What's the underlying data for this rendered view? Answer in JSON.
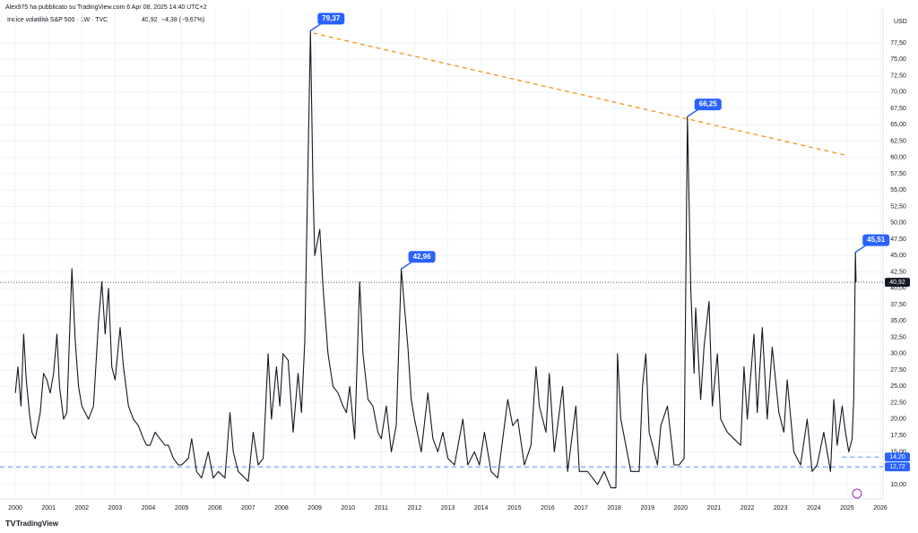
{
  "header": {
    "publisher": "Alex975 ha pubblicato su TradingView.com 6 Apr 08, 2025 14:40 UTC+2",
    "symbol": "Indice volatilità S&P 500 · 1W · TVC",
    "last": "40,92",
    "change": "−4,38 (−9,67%)",
    "currency": "USD",
    "brand": "TradingView"
  },
  "chart_data": {
    "type": "line",
    "series": [
      {
        "color": "#131722",
        "x": [
          2000.0,
          2000.08,
          2000.17,
          2000.25,
          2000.33,
          2000.42,
          2000.5,
          2000.6,
          2000.75,
          2000.85,
          2000.95,
          2001.05,
          2001.15,
          2001.25,
          2001.33,
          2001.45,
          2001.55,
          2001.7,
          2001.8,
          2001.9,
          2002.0,
          2002.1,
          2002.2,
          2002.35,
          2002.5,
          2002.6,
          2002.7,
          2002.8,
          2002.9,
          2003.0,
          2003.15,
          2003.25,
          2003.4,
          2003.55,
          2003.7,
          2003.85,
          2003.95,
          2004.05,
          2004.2,
          2004.35,
          2004.5,
          2004.6,
          2004.75,
          2004.9,
          2005.0,
          2005.2,
          2005.3,
          2005.45,
          2005.6,
          2005.8,
          2005.95,
          2006.1,
          2006.3,
          2006.45,
          2006.55,
          2006.7,
          2006.9,
          2007.0,
          2007.15,
          2007.3,
          2007.45,
          2007.6,
          2007.7,
          2007.85,
          2007.95,
          2008.05,
          2008.2,
          2008.35,
          2008.5,
          2008.6,
          2008.7,
          2008.8,
          2008.87,
          2008.95,
          2009.0,
          2009.15,
          2009.25,
          2009.4,
          2009.55,
          2009.7,
          2009.85,
          2009.95,
          2010.05,
          2010.2,
          2010.35,
          2010.45,
          2010.6,
          2010.75,
          2010.9,
          2011.0,
          2011.15,
          2011.3,
          2011.45,
          2011.6,
          2011.7,
          2011.8,
          2011.9,
          2012.0,
          2012.2,
          2012.4,
          2012.55,
          2012.7,
          2012.85,
          2013.0,
          2013.2,
          2013.45,
          2013.6,
          2013.8,
          2013.95,
          2014.1,
          2014.3,
          2014.5,
          2014.8,
          2014.95,
          2015.1,
          2015.3,
          2015.5,
          2015.65,
          2015.75,
          2015.95,
          2016.05,
          2016.2,
          2016.45,
          2016.6,
          2016.85,
          2016.95,
          2017.2,
          2017.5,
          2017.7,
          2017.9,
          2018.05,
          2018.1,
          2018.2,
          2018.5,
          2018.75,
          2018.85,
          2018.95,
          2019.05,
          2019.3,
          2019.4,
          2019.6,
          2019.8,
          2019.95,
          2020.1,
          2020.2,
          2020.3,
          2020.4,
          2020.45,
          2020.6,
          2020.7,
          2020.85,
          2020.95,
          2021.1,
          2021.2,
          2021.4,
          2021.6,
          2021.8,
          2021.9,
          2022.0,
          2022.2,
          2022.3,
          2022.45,
          2022.6,
          2022.75,
          2022.95,
          2023.1,
          2023.2,
          2023.4,
          2023.6,
          2023.8,
          2023.95,
          2024.1,
          2024.3,
          2024.5,
          2024.6,
          2024.7,
          2024.85,
          2024.95,
          2025.05,
          2025.15,
          2025.2,
          2025.25,
          2025.27
        ],
        "values": [
          24,
          28,
          22,
          33,
          26,
          21,
          18,
          17,
          21,
          27,
          26,
          24,
          27,
          33,
          25,
          20,
          21,
          43,
          32,
          25,
          22,
          21,
          20,
          22,
          35,
          41,
          33,
          40,
          28,
          26,
          34,
          28,
          22,
          20,
          19,
          17,
          16,
          16,
          18,
          17,
          16,
          16,
          14,
          13,
          13,
          14,
          17,
          12,
          11,
          15,
          11,
          12,
          11,
          21,
          15,
          12,
          11,
          10.5,
          18,
          13,
          14,
          30,
          20,
          28,
          22,
          30,
          29,
          18,
          27,
          21,
          32,
          60,
          79.37,
          55,
          45,
          49,
          40,
          30,
          25,
          24,
          22,
          21,
          25,
          17,
          41,
          30,
          23,
          22,
          18,
          17,
          22,
          15,
          19,
          42.96,
          37,
          31,
          23,
          20,
          15,
          24,
          17,
          15,
          18,
          14,
          13,
          20,
          13,
          15,
          13,
          18,
          12,
          11,
          23,
          19,
          20,
          13,
          16,
          28,
          22,
          18,
          27,
          15,
          25,
          12,
          22,
          12,
          12,
          10,
          12,
          9.5,
          9.5,
          30,
          20,
          12,
          12,
          25,
          30,
          18,
          13,
          19,
          22,
          13,
          13,
          14,
          66.25,
          40,
          27,
          37,
          23,
          31,
          38,
          22,
          30,
          20,
          18,
          17,
          16,
          28,
          20,
          33,
          21,
          34,
          20,
          31,
          21,
          18,
          26,
          15,
          13,
          20,
          12,
          13,
          18,
          12,
          23,
          16,
          22,
          18,
          15,
          17,
          23,
          45.51,
          40.92
        ]
      }
    ],
    "xlim": [
      1999.54,
      2026.08
    ],
    "xticks": [
      2000,
      2001,
      2002,
      2003,
      2004,
      2005,
      2006,
      2007,
      2008,
      2009,
      2010,
      2011,
      2012,
      2013,
      2014,
      2015,
      2016,
      2017,
      2018,
      2019,
      2020,
      2021,
      2022,
      2023,
      2024,
      2025,
      2026
    ],
    "ylim": [
      7.8,
      82.7
    ],
    "yticks": [
      {
        "value": 10,
        "label": "10,00"
      },
      {
        "value": 12.5,
        "label": "12,50"
      },
      {
        "value": 15,
        "label": "15,00"
      },
      {
        "value": 17.5,
        "label": "17,50"
      },
      {
        "value": 20,
        "label": "20,00"
      },
      {
        "value": 22.5,
        "label": "22,50"
      },
      {
        "value": 25,
        "label": "25,00"
      },
      {
        "value": 27.5,
        "label": "27,50"
      },
      {
        "value": 30,
        "label": "30,00"
      },
      {
        "value": 32.5,
        "label": "32,50"
      },
      {
        "value": 35,
        "label": "35,00"
      },
      {
        "value": 37.5,
        "label": "37,50"
      },
      {
        "value": 40,
        "label": "40,00"
      },
      {
        "value": 42.5,
        "label": "42,50"
      },
      {
        "value": 45,
        "label": "45,00"
      },
      {
        "value": 47.5,
        "label": "47,50"
      },
      {
        "value": 50,
        "label": "50,00"
      },
      {
        "value": 52.5,
        "label": "52,50"
      },
      {
        "value": 55,
        "label": "55,00"
      },
      {
        "value": 57.5,
        "label": "57,50"
      },
      {
        "value": 60,
        "label": "60,00"
      },
      {
        "value": 62.5,
        "label": "62,50"
      },
      {
        "value": 65,
        "label": "65,00"
      },
      {
        "value": 67.5,
        "label": "67,50"
      },
      {
        "value": 70,
        "label": "70,00"
      },
      {
        "value": 72.5,
        "label": "72,50"
      },
      {
        "value": 75,
        "label": "75,00"
      },
      {
        "value": 77.5,
        "label": "77,50"
      }
    ],
    "grid": true,
    "annotations": [
      {
        "text": "79,37",
        "x": 2008.87,
        "y": 79.37
      },
      {
        "text": "42,96",
        "x": 2011.6,
        "y": 42.96
      },
      {
        "text": "66,25",
        "x": 2020.2,
        "y": 66.25
      },
      {
        "text": "45,51",
        "x": 2025.25,
        "y": 45.51
      }
    ],
    "price_line": {
      "value": 40.92,
      "label": "40,92"
    },
    "levels": [
      {
        "value": 14.2,
        "label": "14,20",
        "x": 2024.85
      },
      {
        "value": 12.72,
        "label": "12,72",
        "x": 1999.54
      }
    ],
    "trend_line": {
      "x": [
        2008.95,
        2025.0
      ],
      "y": [
        79,
        60.3
      ],
      "color": "#f7931a"
    }
  }
}
